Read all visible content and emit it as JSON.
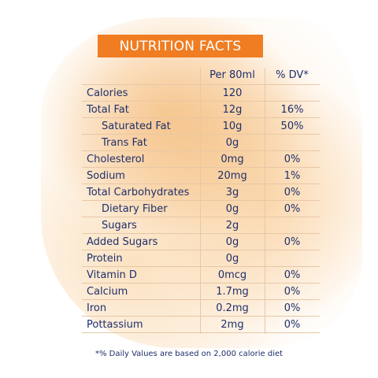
{
  "title": "NUTRITION FACTS",
  "headers": {
    "amount": "Per 80ml",
    "dv": "% DV*"
  },
  "rows": [
    {
      "name": "Calories",
      "amount": "120",
      "dv": "",
      "indent": false
    },
    {
      "name": "Total Fat",
      "amount": "12g",
      "dv": "16%",
      "indent": false
    },
    {
      "name": "Saturated Fat",
      "amount": "10g",
      "dv": "50%",
      "indent": true
    },
    {
      "name": "Trans Fat",
      "amount": "0g",
      "dv": "",
      "indent": true
    },
    {
      "name": "Cholesterol",
      "amount": "0mg",
      "dv": "0%",
      "indent": false
    },
    {
      "name": "Sodium",
      "amount": "20mg",
      "dv": "1%",
      "indent": false
    },
    {
      "name": "Total Carbohydrates",
      "amount": "3g",
      "dv": "0%",
      "indent": false
    },
    {
      "name": "Dietary Fiber",
      "amount": "0g",
      "dv": "0%",
      "indent": true
    },
    {
      "name": "Sugars",
      "amount": "2g",
      "dv": "",
      "indent": true
    },
    {
      "name": "Added Sugars",
      "amount": "0g",
      "dv": "0%",
      "indent": false
    },
    {
      "name": "Protein",
      "amount": "0g",
      "dv": "",
      "indent": false
    },
    {
      "name": "Vitamin D",
      "amount": "0mcg",
      "dv": "0%",
      "indent": false
    },
    {
      "name": "Calcium",
      "amount": "1.7mg",
      "dv": "0%",
      "indent": false
    },
    {
      "name": "Iron",
      "amount": "0.2mg",
      "dv": "0%",
      "indent": false
    },
    {
      "name": "Pottassium",
      "amount": "2mg",
      "dv": "0%",
      "indent": false
    }
  ],
  "footnote": "*% Daily Values are based on 2,000 calorie diet",
  "colors": {
    "accent": "#f07d22",
    "text": "#1f2f6b",
    "wash": "#fbe0be",
    "grid": "#e7c7a6"
  }
}
